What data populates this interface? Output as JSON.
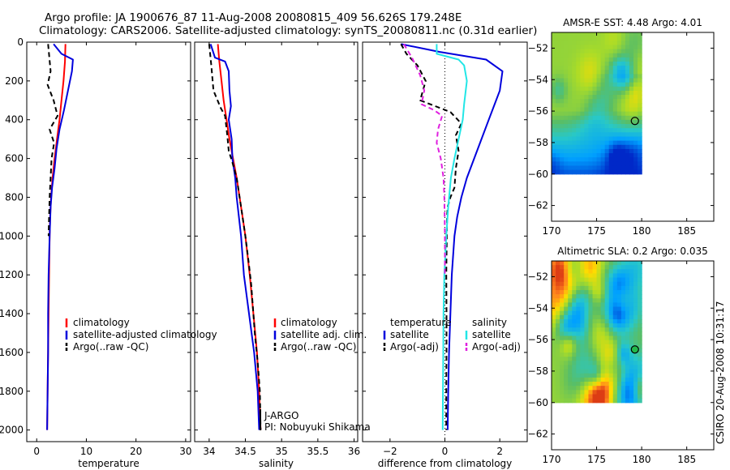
{
  "header": {
    "line1": "Argo profile: JA 1900676_87 11-Aug-2008 20080815_409 56.626S 179.248E",
    "line2": "Climatology: CARS2006. Satellite-adjusted climatology: synTS_20080811.nc (0.31d earlier)"
  },
  "colors": {
    "red": "#ff0000",
    "blue": "#0000dd",
    "black": "#000000",
    "cyan": "#22e6e6",
    "magenta": "#e020e0"
  },
  "chart_data": [
    {
      "id": "temperature",
      "type": "line",
      "xlabel": "temperature",
      "xlim": [
        -2,
        31
      ],
      "ylim": [
        2060,
        0
      ],
      "xticks": [
        0,
        10,
        20,
        30
      ],
      "yticks": [
        0,
        200,
        400,
        600,
        800,
        1000,
        1200,
        1400,
        1600,
        1800,
        2000
      ],
      "legend": [
        "climatology",
        "satellite-adjusted climatology",
        "Argo(..raw -QC)"
      ],
      "series": [
        {
          "name": "climatology",
          "color": "red",
          "dash": false,
          "points": [
            [
              5.8,
              10
            ],
            [
              5.7,
              100
            ],
            [
              5.4,
              200
            ],
            [
              5.0,
              300
            ],
            [
              4.6,
              400
            ],
            [
              4.1,
              500
            ],
            [
              3.6,
              600
            ],
            [
              3.2,
              700
            ],
            [
              2.9,
              800
            ],
            [
              2.7,
              900
            ],
            [
              2.6,
              1000
            ],
            [
              2.5,
              1200
            ],
            [
              2.4,
              1400
            ],
            [
              2.3,
              1600
            ],
            [
              2.2,
              1800
            ],
            [
              2.1,
              2000
            ]
          ]
        },
        {
          "name": "satellite-adjusted climatology",
          "color": "blue",
          "dash": false,
          "points": [
            [
              3.4,
              10
            ],
            [
              5.0,
              60
            ],
            [
              7.3,
              90
            ],
            [
              7.1,
              150
            ],
            [
              6.3,
              250
            ],
            [
              5.5,
              350
            ],
            [
              4.6,
              450
            ],
            [
              4.0,
              550
            ],
            [
              3.6,
              650
            ],
            [
              3.1,
              750
            ],
            [
              2.8,
              850
            ],
            [
              2.6,
              1000
            ],
            [
              2.4,
              1200
            ],
            [
              2.3,
              1400
            ],
            [
              2.3,
              1600
            ],
            [
              2.2,
              1800
            ],
            [
              2.1,
              2000
            ]
          ]
        },
        {
          "name": "Argo(..raw -QC)",
          "color": "black",
          "dash": true,
          "points": [
            [
              2.3,
              10
            ],
            [
              2.8,
              150
            ],
            [
              2.2,
              220
            ],
            [
              3.4,
              300
            ],
            [
              4.2,
              380
            ],
            [
              2.6,
              450
            ],
            [
              3.5,
              520
            ],
            [
              3.0,
              600
            ],
            [
              2.8,
              700
            ],
            [
              2.6,
              800
            ],
            [
              2.5,
              900
            ],
            [
              2.4,
              1000
            ]
          ]
        }
      ]
    },
    {
      "id": "salinity",
      "type": "line",
      "xlabel": "salinity",
      "xlim": [
        33.8,
        36.05
      ],
      "ylim": [
        2060,
        0
      ],
      "xticks": [
        34,
        34.5,
        35,
        35.5,
        36
      ],
      "xticklabels": [
        "34",
        "34.5",
        "35",
        "35.5",
        "36"
      ],
      "legend": [
        "climatology",
        "satellite adj. clim.",
        "Argo(..raw -QC)"
      ],
      "annotation": [
        "J-ARGO",
        "PI: Nobuyuki Shikama"
      ],
      "series": [
        {
          "name": "climatology",
          "color": "red",
          "dash": false,
          "points": [
            [
              34.12,
              10
            ],
            [
              34.14,
              100
            ],
            [
              34.17,
              200
            ],
            [
              34.2,
              300
            ],
            [
              34.24,
              400
            ],
            [
              34.28,
              500
            ],
            [
              34.33,
              600
            ],
            [
              34.38,
              700
            ],
            [
              34.42,
              800
            ],
            [
              34.46,
              900
            ],
            [
              34.5,
              1000
            ],
            [
              34.56,
              1200
            ],
            [
              34.61,
              1400
            ],
            [
              34.66,
              1600
            ],
            [
              34.69,
              1800
            ],
            [
              34.71,
              2000
            ]
          ]
        },
        {
          "name": "satellite adj. clim.",
          "color": "blue",
          "dash": false,
          "points": [
            [
              34.02,
              10
            ],
            [
              34.08,
              80
            ],
            [
              34.22,
              100
            ],
            [
              34.27,
              150
            ],
            [
              34.28,
              250
            ],
            [
              34.3,
              330
            ],
            [
              34.27,
              400
            ],
            [
              34.31,
              500
            ],
            [
              34.32,
              600
            ],
            [
              34.36,
              700
            ],
            [
              34.38,
              800
            ],
            [
              34.41,
              900
            ],
            [
              34.44,
              1000
            ],
            [
              34.48,
              1200
            ],
            [
              34.55,
              1400
            ],
            [
              34.62,
              1600
            ],
            [
              34.67,
              1800
            ],
            [
              34.69,
              2000
            ]
          ]
        },
        {
          "name": "Argo(..raw -QC)",
          "color": "black",
          "dash": true,
          "points": [
            [
              34.0,
              10
            ],
            [
              34.03,
              120
            ],
            [
              34.06,
              250
            ],
            [
              34.16,
              340
            ],
            [
              34.22,
              380
            ],
            [
              34.25,
              480
            ],
            [
              34.27,
              560
            ],
            [
              34.32,
              620
            ],
            [
              34.38,
              700
            ],
            [
              34.42,
              800
            ],
            [
              34.46,
              900
            ],
            [
              34.5,
              1000
            ],
            [
              34.55,
              1150
            ],
            [
              34.58,
              1250
            ],
            [
              34.6,
              1350
            ],
            [
              34.63,
              1500
            ],
            [
              34.67,
              1650
            ],
            [
              34.7,
              1800
            ],
            [
              34.71,
              2000
            ]
          ]
        }
      ]
    },
    {
      "id": "difference",
      "type": "line",
      "xlabel": "difference from climatology",
      "xlim": [
        -3,
        3
      ],
      "ylim": [
        2060,
        0
      ],
      "xticks": [
        -2,
        0,
        2
      ],
      "legend": {
        "temperature": {
          "header": "temperature",
          "items": [
            "satellite",
            "Argo(-adj)"
          ]
        },
        "salinity": {
          "header": "salinity",
          "items": [
            "satellite",
            "Argo(-adj)"
          ]
        }
      },
      "series": [
        {
          "name": "temperature satellite",
          "color": "blue",
          "dash": false,
          "points": [
            [
              -1.6,
              10
            ],
            [
              -0.2,
              50
            ],
            [
              1.5,
              90
            ],
            [
              2.1,
              150
            ],
            [
              2.0,
              250
            ],
            [
              1.6,
              400
            ],
            [
              1.2,
              550
            ],
            [
              0.8,
              700
            ],
            [
              0.6,
              800
            ],
            [
              0.45,
              900
            ],
            [
              0.35,
              1000
            ],
            [
              0.25,
              1200
            ],
            [
              0.2,
              1400
            ],
            [
              0.15,
              1600
            ],
            [
              0.12,
              1800
            ],
            [
              0.1,
              2000
            ]
          ]
        },
        {
          "name": "temperature Argo(-adj)",
          "color": "black",
          "dash": true,
          "points": [
            [
              -1.6,
              10
            ],
            [
              -1.4,
              60
            ],
            [
              -1.0,
              120
            ],
            [
              -0.7,
              200
            ],
            [
              -0.9,
              300
            ],
            [
              0.2,
              360
            ],
            [
              0.6,
              420
            ],
            [
              0.4,
              480
            ],
            [
              0.5,
              560
            ],
            [
              0.4,
              650
            ],
            [
              0.35,
              750
            ],
            [
              0.2,
              800
            ],
            [
              0.1,
              850
            ],
            [
              0.08,
              900
            ],
            [
              0.07,
              1000
            ],
            [
              0.06,
              1100
            ],
            [
              0.05,
              1200
            ],
            [
              0.06,
              1400
            ],
            [
              0.06,
              1600
            ],
            [
              0.05,
              1800
            ],
            [
              0.05,
              2000
            ]
          ]
        },
        {
          "name": "salinity satellite",
          "color": "cyan",
          "dash": false,
          "points": [
            [
              -0.3,
              10
            ],
            [
              -0.3,
              60
            ],
            [
              0.5,
              90
            ],
            [
              0.7,
              120
            ],
            [
              0.8,
              200
            ],
            [
              0.7,
              320
            ],
            [
              0.65,
              400
            ],
            [
              0.5,
              500
            ],
            [
              0.35,
              600
            ],
            [
              0.22,
              700
            ],
            [
              0.12,
              850
            ],
            [
              0.05,
              1000
            ],
            [
              -0.02,
              1200
            ],
            [
              -0.05,
              1400
            ],
            [
              -0.06,
              1600
            ],
            [
              -0.07,
              1800
            ],
            [
              -0.08,
              2000
            ]
          ]
        },
        {
          "name": "salinity Argo(-adj)",
          "color": "magenta",
          "dash": true,
          "points": [
            [
              -1.5,
              10
            ],
            [
              -1.2,
              80
            ],
            [
              -0.9,
              170
            ],
            [
              -0.75,
              250
            ],
            [
              -0.85,
              320
            ],
            [
              -0.4,
              350
            ],
            [
              -0.1,
              380
            ],
            [
              -0.25,
              450
            ],
            [
              -0.3,
              520
            ],
            [
              -0.15,
              600
            ],
            [
              -0.05,
              700
            ],
            [
              -0.02,
              800
            ],
            [
              -0.01,
              900
            ],
            [
              0.0,
              1000
            ],
            [
              0.0,
              1200
            ]
          ]
        }
      ]
    },
    {
      "id": "sst-map",
      "type": "heatmap",
      "title": "AMSR-E SST: 4.48  Argo: 4.01",
      "xlim": [
        170,
        188
      ],
      "ylim": [
        -63,
        -51
      ],
      "xticks": [
        170,
        175,
        180,
        185
      ],
      "yticks": [
        -52,
        -54,
        -56,
        -58,
        -60,
        -62
      ],
      "data_extent": {
        "lon": [
          170,
          180
        ],
        "lat": [
          -60,
          -51
        ]
      },
      "profile_location": {
        "lon": 179.248,
        "lat": -56.626
      }
    },
    {
      "id": "sla-map",
      "type": "heatmap",
      "title": "Altimetric SLA: 0.2  Argo: 0.035",
      "xlim": [
        170,
        188
      ],
      "ylim": [
        -63,
        -51
      ],
      "xticks": [
        170,
        175,
        180,
        185
      ],
      "yticks": [
        -52,
        -54,
        -56,
        -58,
        -60,
        -62
      ],
      "data_extent": {
        "lon": [
          170,
          180
        ],
        "lat": [
          -60,
          -51
        ]
      },
      "profile_location": {
        "lon": 179.248,
        "lat": -56.626
      }
    }
  ],
  "credit": "CSIRO  20-Aug-2008 10:31:17"
}
